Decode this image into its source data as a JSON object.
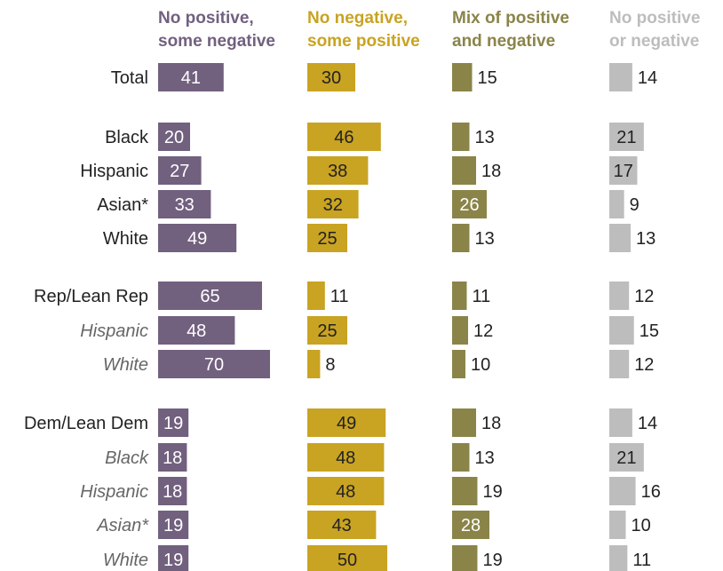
{
  "colors": {
    "purple": "#72607f",
    "gold": "#c9a322",
    "olive": "#8a8449",
    "gray": "#bdbdbd"
  },
  "chart_data": {
    "type": "bar",
    "columns": [
      {
        "key": "np_sn",
        "header_lines": [
          "No positive,",
          "some negative"
        ],
        "color": "#72607f"
      },
      {
        "key": "nn_sp",
        "header_lines": [
          "No negative,",
          "some positive"
        ],
        "color": "#c9a322"
      },
      {
        "key": "mix",
        "header_lines": [
          "Mix of positive",
          "and negative"
        ],
        "color": "#8a8449"
      },
      {
        "key": "none",
        "header_lines": [
          "No positive",
          "or negative"
        ],
        "color": "#bdbdbd"
      }
    ],
    "rows": [
      {
        "label": "Total",
        "sub": false,
        "values": [
          41,
          30,
          15,
          14
        ]
      },
      {
        "label": "Black",
        "sub": false,
        "values": [
          20,
          46,
          13,
          21
        ]
      },
      {
        "label": "Hispanic",
        "sub": false,
        "values": [
          27,
          38,
          18,
          17
        ]
      },
      {
        "label": "Asian*",
        "sub": false,
        "values": [
          33,
          32,
          26,
          9
        ]
      },
      {
        "label": "White",
        "sub": false,
        "values": [
          49,
          25,
          13,
          13
        ]
      },
      {
        "label": "Rep/Lean Rep",
        "sub": false,
        "values": [
          65,
          11,
          11,
          12
        ]
      },
      {
        "label": "Hispanic",
        "sub": true,
        "values": [
          48,
          25,
          12,
          15
        ]
      },
      {
        "label": "White",
        "sub": true,
        "values": [
          70,
          8,
          10,
          12
        ]
      },
      {
        "label": "Dem/Lean Dem",
        "sub": false,
        "values": [
          19,
          49,
          18,
          14
        ]
      },
      {
        "label": "Black",
        "sub": true,
        "values": [
          18,
          48,
          13,
          21
        ]
      },
      {
        "label": "Hispanic",
        "sub": true,
        "values": [
          18,
          48,
          19,
          16
        ]
      },
      {
        "label": "Asian*",
        "sub": true,
        "values": [
          19,
          43,
          28,
          10
        ]
      },
      {
        "label": "White",
        "sub": true,
        "values": [
          19,
          50,
          19,
          11
        ]
      }
    ]
  }
}
